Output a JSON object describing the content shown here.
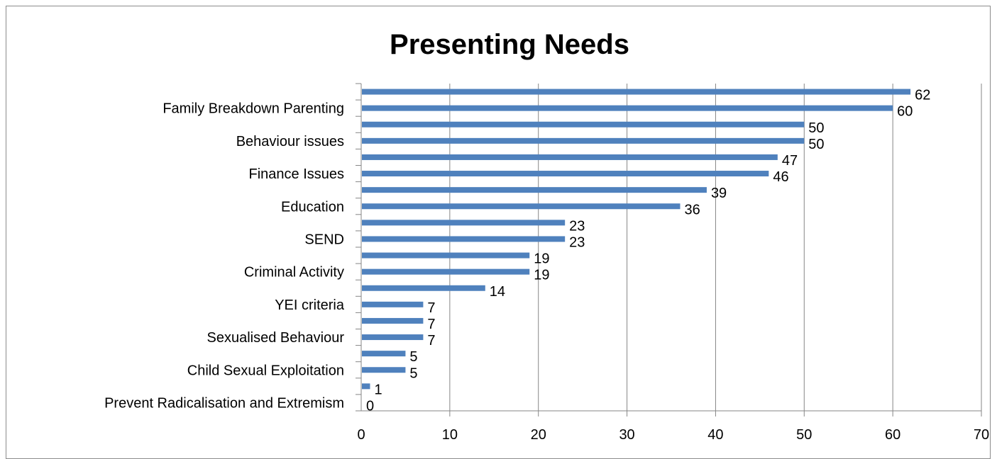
{
  "chart_data": {
    "type": "bar",
    "orientation": "horizontal",
    "title": "Presenting Needs",
    "xlabel": "",
    "ylabel": "",
    "xlim": [
      0,
      70
    ],
    "x_ticks": [
      0,
      10,
      20,
      30,
      40,
      50,
      60,
      70
    ],
    "grid": "vertical",
    "legend": "none",
    "colors": {
      "bar": "#4f81bd",
      "grid": "#868686",
      "axis": "#868686"
    },
    "values": [
      62,
      60,
      50,
      50,
      47,
      46,
      39,
      36,
      23,
      23,
      19,
      19,
      14,
      7,
      7,
      7,
      5,
      5,
      1,
      0
    ],
    "categories": [
      "",
      "Family Breakdown Parenting",
      "",
      "Behaviour issues",
      "",
      "Finance Issues",
      "",
      "Education",
      "",
      "SEND",
      "",
      "Criminal Activity",
      "",
      "YEI criteria",
      "",
      "Sexualised Behaviour",
      "",
      "Child Sexual Exploitation",
      "",
      "Prevent Radicalisation and Extremism"
    ]
  }
}
